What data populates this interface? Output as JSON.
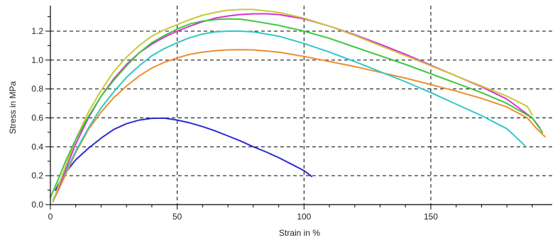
{
  "chart_data": {
    "type": "line",
    "xlabel": "Strain in %",
    "ylabel": "Stress in MPa",
    "xlim": [
      0,
      197
    ],
    "ylim": [
      0,
      1.38
    ],
    "x_ticks": [
      0,
      50,
      100,
      150
    ],
    "x_minor_ticks": [
      10,
      20,
      30,
      40,
      60,
      70,
      80,
      90,
      110,
      120,
      130,
      140,
      160,
      170,
      180,
      190
    ],
    "y_ticks": [
      0,
      0.2,
      0.4,
      0.6,
      0.8,
      1.0,
      1.2
    ],
    "y_minor_ticks": [
      0.1,
      0.3,
      0.5,
      0.7,
      0.9,
      1.1,
      1.3
    ],
    "x_tick_labels": [
      "0",
      "50",
      "100",
      "150"
    ],
    "y_tick_labels": [
      "0.0",
      "0.2",
      "0.4",
      "0.6",
      "0.8",
      "1.0",
      "1.2"
    ],
    "grid": "dashed at major ticks",
    "legend": "none",
    "series": [
      {
        "color": "#2b2bd0",
        "points": [
          [
            2,
            0.1
          ],
          [
            5,
            0.2
          ],
          [
            10,
            0.31
          ],
          [
            15,
            0.39
          ],
          [
            20,
            0.46
          ],
          [
            25,
            0.52
          ],
          [
            30,
            0.56
          ],
          [
            35,
            0.585
          ],
          [
            40,
            0.597
          ],
          [
            45,
            0.598
          ],
          [
            50,
            0.585
          ],
          [
            55,
            0.565
          ],
          [
            60,
            0.54
          ],
          [
            65,
            0.51
          ],
          [
            70,
            0.475
          ],
          [
            75,
            0.44
          ],
          [
            80,
            0.4
          ],
          [
            85,
            0.365
          ],
          [
            90,
            0.325
          ],
          [
            95,
            0.28
          ],
          [
            100,
            0.235
          ],
          [
            103,
            0.195
          ]
        ]
      },
      {
        "color": "#f08c2c",
        "points": [
          [
            1,
            0.02
          ],
          [
            5,
            0.17
          ],
          [
            10,
            0.36
          ],
          [
            15,
            0.52
          ],
          [
            20,
            0.64
          ],
          [
            25,
            0.74
          ],
          [
            30,
            0.82
          ],
          [
            35,
            0.89
          ],
          [
            40,
            0.945
          ],
          [
            45,
            0.985
          ],
          [
            50,
            1.015
          ],
          [
            55,
            1.04
          ],
          [
            60,
            1.055
          ],
          [
            65,
            1.065
          ],
          [
            70,
            1.07
          ],
          [
            75,
            1.072
          ],
          [
            80,
            1.07
          ],
          [
            90,
            1.055
          ],
          [
            100,
            1.025
          ],
          [
            110,
            0.99
          ],
          [
            120,
            0.955
          ],
          [
            130,
            0.915
          ],
          [
            140,
            0.875
          ],
          [
            150,
            0.83
          ],
          [
            160,
            0.785
          ],
          [
            170,
            0.735
          ],
          [
            180,
            0.675
          ],
          [
            188,
            0.6
          ],
          [
            192,
            0.52
          ],
          [
            195,
            0.47
          ]
        ]
      },
      {
        "color": "#2ec8c8",
        "points": [
          [
            1,
            0.03
          ],
          [
            5,
            0.19
          ],
          [
            10,
            0.37
          ],
          [
            15,
            0.53
          ],
          [
            20,
            0.67
          ],
          [
            25,
            0.78
          ],
          [
            30,
            0.88
          ],
          [
            35,
            0.96
          ],
          [
            40,
            1.03
          ],
          [
            45,
            1.08
          ],
          [
            50,
            1.12
          ],
          [
            55,
            1.155
          ],
          [
            60,
            1.18
          ],
          [
            65,
            1.195
          ],
          [
            70,
            1.2
          ],
          [
            75,
            1.2
          ],
          [
            80,
            1.195
          ],
          [
            90,
            1.165
          ],
          [
            100,
            1.115
          ],
          [
            110,
            1.055
          ],
          [
            120,
            0.99
          ],
          [
            130,
            0.92
          ],
          [
            140,
            0.85
          ],
          [
            150,
            0.775
          ],
          [
            160,
            0.695
          ],
          [
            170,
            0.615
          ],
          [
            180,
            0.525
          ],
          [
            187,
            0.41
          ]
        ]
      },
      {
        "color": "#d830d8",
        "points": [
          [
            1,
            0.02
          ],
          [
            5,
            0.2
          ],
          [
            10,
            0.42
          ],
          [
            15,
            0.6
          ],
          [
            20,
            0.75
          ],
          [
            25,
            0.87
          ],
          [
            30,
            0.97
          ],
          [
            35,
            1.05
          ],
          [
            40,
            1.11
          ],
          [
            45,
            1.16
          ],
          [
            50,
            1.2
          ],
          [
            55,
            1.235
          ],
          [
            60,
            1.265
          ],
          [
            65,
            1.29
          ],
          [
            70,
            1.305
          ],
          [
            75,
            1.315
          ],
          [
            80,
            1.32
          ],
          [
            85,
            1.32
          ],
          [
            90,
            1.315
          ],
          [
            100,
            1.285
          ],
          [
            110,
            1.235
          ],
          [
            120,
            1.175
          ],
          [
            130,
            1.11
          ],
          [
            140,
            1.04
          ],
          [
            150,
            0.965
          ],
          [
            160,
            0.89
          ],
          [
            170,
            0.815
          ],
          [
            180,
            0.73
          ],
          [
            190,
            0.6
          ],
          [
            193,
            0.53
          ]
        ]
      },
      {
        "color": "#c8c83a",
        "points": [
          [
            1,
            0.02
          ],
          [
            5,
            0.22
          ],
          [
            10,
            0.45
          ],
          [
            15,
            0.64
          ],
          [
            20,
            0.79
          ],
          [
            25,
            0.92
          ],
          [
            30,
            1.02
          ],
          [
            35,
            1.1
          ],
          [
            40,
            1.165
          ],
          [
            45,
            1.21
          ],
          [
            50,
            1.245
          ],
          [
            55,
            1.28
          ],
          [
            60,
            1.31
          ],
          [
            65,
            1.33
          ],
          [
            70,
            1.345
          ],
          [
            75,
            1.35
          ],
          [
            80,
            1.35
          ],
          [
            90,
            1.33
          ],
          [
            100,
            1.29
          ],
          [
            110,
            1.235
          ],
          [
            120,
            1.17
          ],
          [
            130,
            1.1
          ],
          [
            140,
            1.03
          ],
          [
            150,
            0.96
          ],
          [
            160,
            0.89
          ],
          [
            170,
            0.82
          ],
          [
            180,
            0.75
          ],
          [
            188,
            0.68
          ],
          [
            190,
            0.62
          ]
        ]
      },
      {
        "color": "#3cc83c",
        "points": [
          [
            0,
            0.05
          ],
          [
            3,
            0.17
          ],
          [
            6,
            0.3
          ],
          [
            10,
            0.45
          ],
          [
            15,
            0.61
          ],
          [
            20,
            0.75
          ],
          [
            25,
            0.86
          ],
          [
            30,
            0.96
          ],
          [
            35,
            1.05
          ],
          [
            40,
            1.12
          ],
          [
            45,
            1.17
          ],
          [
            50,
            1.215
          ],
          [
            55,
            1.25
          ],
          [
            60,
            1.27
          ],
          [
            65,
            1.28
          ],
          [
            70,
            1.285
          ],
          [
            75,
            1.283
          ],
          [
            80,
            1.27
          ],
          [
            90,
            1.24
          ],
          [
            100,
            1.2
          ],
          [
            110,
            1.15
          ],
          [
            120,
            1.09
          ],
          [
            130,
            1.03
          ],
          [
            140,
            0.97
          ],
          [
            150,
            0.905
          ],
          [
            160,
            0.84
          ],
          [
            170,
            0.775
          ],
          [
            180,
            0.7
          ],
          [
            190,
            0.6
          ],
          [
            194,
            0.5
          ]
        ]
      }
    ]
  }
}
